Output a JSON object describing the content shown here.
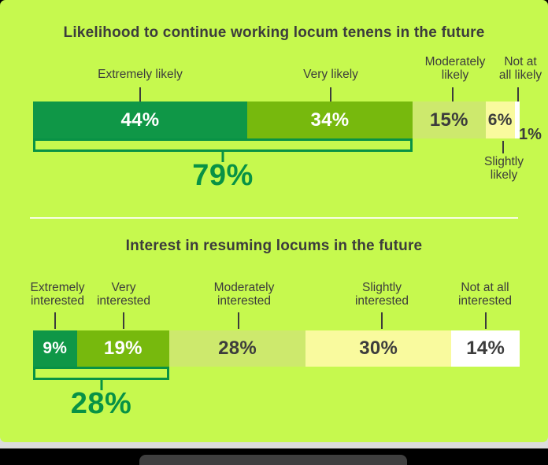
{
  "window": {
    "background": "#000000",
    "card_color": "#c6f94e",
    "page_strip_color": "#dcdcdc",
    "footer_pill_color": "#3f3f3f",
    "text_color_dark": "#3c3c3c",
    "accent_green": "#089245"
  },
  "chart_data": [
    {
      "type": "bar",
      "orientation": "horizontal-stacked-100pct",
      "title": "Likelihood to continue working locum tenens in the future",
      "categories": [
        "Extremely likely",
        "Very likely",
        "Moderately likely",
        "Slightly likely",
        "Not at all likely"
      ],
      "values": [
        44,
        34,
        15,
        6,
        1
      ],
      "segments": [
        {
          "category": "Extremely likely",
          "label_lines": [
            "Extremely likely",
            ""
          ],
          "value": 44,
          "value_label": "44%",
          "color": "#0f9747",
          "value_text_color": "#ffffff",
          "category_label_position": "above"
        },
        {
          "category": "Very likely",
          "label_lines": [
            "Very likely",
            ""
          ],
          "value": 34,
          "value_label": "34%",
          "color": "#77b90d",
          "value_text_color": "#ffffff",
          "category_label_position": "above"
        },
        {
          "category": "Moderately likely",
          "label_lines": [
            "Moderately",
            "likely"
          ],
          "value": 15,
          "value_label": "15%",
          "color": "#cde96d",
          "value_text_color": "#3c3c3c",
          "category_label_position": "above"
        },
        {
          "category": "Slightly likely",
          "label_lines": [
            "Slightly",
            "likely"
          ],
          "value": 6,
          "value_label": "6%",
          "color": "#f9fa9e",
          "value_text_color": "#3c3c3c",
          "category_label_position": "below"
        },
        {
          "category": "Not at all likely",
          "label_lines": [
            "Not at",
            "all likely"
          ],
          "value": 1,
          "value_label": "1%",
          "color": "#ffffff",
          "value_text_color": "#3c3c3c",
          "category_label_position": "above",
          "value_label_position": "outside-right"
        }
      ],
      "bracket": {
        "label": "79%",
        "value": 79,
        "covers_indexes": [
          0,
          1
        ]
      }
    },
    {
      "type": "bar",
      "orientation": "horizontal-stacked-100pct",
      "title": "Interest in resuming locums in the future",
      "categories": [
        "Extremely interested",
        "Very interested",
        "Moderately interested",
        "Slightly interested",
        "Not at all interested"
      ],
      "values": [
        9,
        19,
        28,
        30,
        14
      ],
      "segments": [
        {
          "category": "Extremely interested",
          "label_lines": [
            "Extremely",
            "interested"
          ],
          "value": 9,
          "value_label": "9%",
          "color": "#0f9747",
          "value_text_color": "#ffffff",
          "category_label_position": "above"
        },
        {
          "category": "Very interested",
          "label_lines": [
            "Very",
            "interested"
          ],
          "value": 19,
          "value_label": "19%",
          "color": "#77b90d",
          "value_text_color": "#ffffff",
          "category_label_position": "above"
        },
        {
          "category": "Moderately interested",
          "label_lines": [
            "Moderately",
            "interested"
          ],
          "value": 28,
          "value_label": "28%",
          "color": "#cde96d",
          "value_text_color": "#3c3c3c",
          "category_label_position": "above"
        },
        {
          "category": "Slightly interested",
          "label_lines": [
            "Slightly",
            "interested"
          ],
          "value": 30,
          "value_label": "30%",
          "color": "#f9fa9e",
          "value_text_color": "#3c3c3c",
          "category_label_position": "above"
        },
        {
          "category": "Not at all interested",
          "label_lines": [
            "Not at all",
            "interested"
          ],
          "value": 14,
          "value_label": "14%",
          "color": "#ffffff",
          "value_text_color": "#3c3c3c",
          "category_label_position": "above"
        }
      ],
      "bracket": {
        "label": "28%",
        "value": 28,
        "covers_indexes": [
          0,
          1
        ]
      }
    }
  ]
}
